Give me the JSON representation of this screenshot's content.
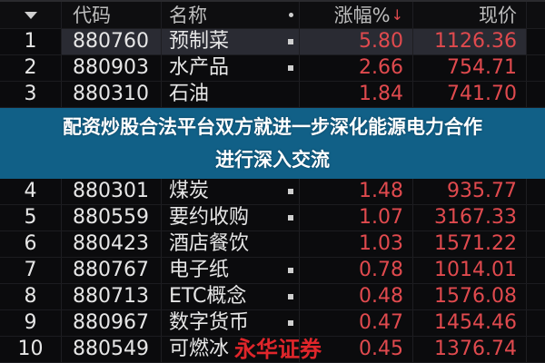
{
  "header": {
    "sort_icon": "triangle-down",
    "code": "代码",
    "name": "名称",
    "change": "涨幅%",
    "change_sort_icon": "arrow-down",
    "price": "现价"
  },
  "rows": [
    {
      "rank": "1",
      "code": "880760",
      "name": "预制菜",
      "change": "5.80",
      "price": "1126.36",
      "selected": true
    },
    {
      "rank": "2",
      "code": "880903",
      "name": "水产品",
      "change": "2.66",
      "price": "754.71"
    },
    {
      "rank": "3",
      "code": "880310",
      "name": "石油",
      "change": "1.84",
      "price": "741.70"
    },
    {
      "rank": "4",
      "code": "880301",
      "name": "煤炭",
      "change": "1.48",
      "price": "935.77"
    },
    {
      "rank": "5",
      "code": "880559",
      "name": "要约收购",
      "change": "1.07",
      "price": "3167.33"
    },
    {
      "rank": "6",
      "code": "880423",
      "name": "酒店餐饮",
      "change": "1.03",
      "price": "1571.22"
    },
    {
      "rank": "7",
      "code": "880767",
      "name": "电子纸",
      "change": "0.78",
      "price": "1014.01"
    },
    {
      "rank": "8",
      "code": "880713",
      "name": "ETC概念",
      "change": "0.48",
      "price": "1576.08"
    },
    {
      "rank": "9",
      "code": "880967",
      "name": "数字货币",
      "change": "0.47",
      "price": "1454.46"
    },
    {
      "rank": "10",
      "code": "880549",
      "name": "可燃冰",
      "change": "0.45",
      "price": "1376.74"
    }
  ],
  "banner": {
    "line1": "配资炒股合法平台双方就进一步深化能源电力合作",
    "line2": "进行深入交流"
  },
  "watermark": "永华证券",
  "colors": {
    "up": "#e04a4e",
    "banner": "#126891",
    "background": "#0b0b0d"
  }
}
